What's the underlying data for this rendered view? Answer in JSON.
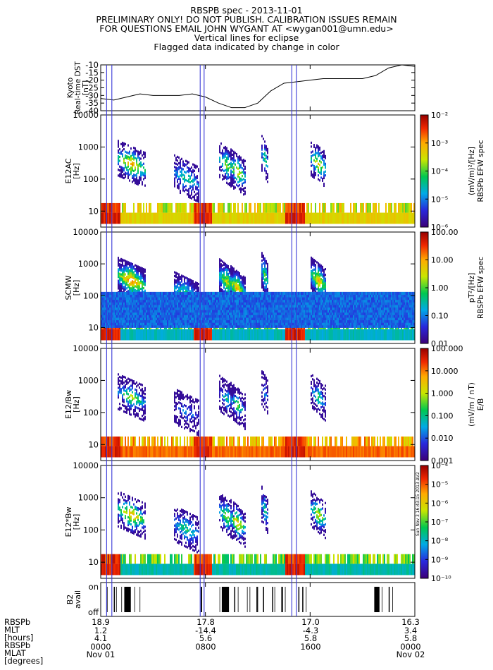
{
  "header": {
    "lines": [
      "RBSPB spec - 2013-11-01",
      "PRELIMINARY ONLY! DO NOT PUBLISH. CALIBRATION ISSUES REMAIN",
      "FOR QUESTIONS EMAIL JOHN WYGANT AT <wygan001@umn.edu>",
      "Vertical lines for eclipse",
      "Flagged data indicated by change in color"
    ]
  },
  "chart_data": [
    {
      "type": "line",
      "ylabel": [
        "Kyoto",
        "Real-time DST",
        "[nT]"
      ],
      "ylim": [
        -40,
        -10
      ],
      "yticks": [
        -10,
        -15,
        -20,
        -25,
        -30,
        -35,
        -40
      ],
      "x_hours": [
        0,
        1,
        2,
        3,
        4,
        5,
        6,
        7,
        8,
        9,
        10,
        11,
        12,
        13,
        14,
        15,
        16,
        17,
        18,
        19,
        20,
        21,
        22,
        23,
        24
      ],
      "values": [
        -32,
        -33,
        -31,
        -29,
        -30,
        -30,
        -30,
        -29,
        -31,
        -35,
        -38,
        -38,
        -35,
        -27,
        -22,
        -21,
        -20,
        -19,
        -19,
        -19,
        -19,
        -17,
        -12,
        -10,
        -11
      ],
      "grid": false
    },
    {
      "type": "heatmap",
      "ylabel": [
        "E12AC",
        "[Hz]"
      ],
      "ylog": true,
      "yticks": [
        "10",
        "100",
        "1000",
        "10000"
      ],
      "colorbar": {
        "label": [
          "(mV/m)²/[Hz]",
          "RBSPb EFW spec"
        ],
        "ticks": [
          "10⁻²",
          "10⁻³",
          "10⁻⁴",
          "10⁻⁵",
          "10⁻⁶"
        ]
      }
    },
    {
      "type": "heatmap",
      "ylabel": [
        "SCMW",
        "[Hz]"
      ],
      "ylog": true,
      "yticks": [
        "10",
        "100",
        "1000",
        "10000"
      ],
      "colorbar": {
        "label": [
          "pT²/[Hz]",
          "RBSPb EFW spec"
        ],
        "ticks": [
          "100.00",
          "10.00",
          "1.00",
          "0.10",
          "0.01"
        ]
      }
    },
    {
      "type": "heatmap",
      "ylabel": [
        "E12/Bw",
        "[Hz]"
      ],
      "ylog": true,
      "yticks": [
        "10",
        "100",
        "1000",
        "10000"
      ],
      "colorbar": {
        "label": [
          "(mV/m / nT)",
          "E/B"
        ],
        "ticks": [
          "100.000",
          "10.000",
          "1.000",
          "0.100",
          "0.010",
          "0.001"
        ]
      }
    },
    {
      "type": "heatmap",
      "ylabel": [
        "E12*Bw",
        "[Hz]"
      ],
      "ylog": true,
      "yticks": [
        "10",
        "100",
        "1000",
        "10000"
      ],
      "colorbar": {
        "label": [],
        "ticks": [
          "10⁻⁴",
          "10⁻⁵",
          "10⁻⁶",
          "10⁻⁷",
          "10⁻⁸",
          "10⁻⁹",
          "10⁻¹⁰"
        ]
      }
    },
    {
      "type": "bar",
      "ylabel": [
        "B2",
        "avail"
      ],
      "yticks": [
        "on",
        "off"
      ]
    }
  ],
  "eclipse_hours": [
    0.45,
    0.85,
    7.6,
    7.9,
    14.6,
    14.95
  ],
  "footer": {
    "row_labels": [
      "RBSPb",
      "MLT",
      "[hours]",
      "RBSPb",
      "MLAT",
      "[degrees]"
    ],
    "columns": [
      {
        "hour": 0,
        "values": [
          "18.9",
          "1.2",
          "4.1",
          "0000",
          "Nov 01"
        ]
      },
      {
        "hour": 8,
        "values": [
          "17.8",
          "-14.4",
          "5.6",
          "0800",
          ""
        ]
      },
      {
        "hour": 16,
        "values": [
          "17.0",
          "-4.3",
          "5.8",
          "1600",
          ""
        ]
      },
      {
        "hour": 24,
        "values": [
          "16.3",
          "3.4",
          "5.8",
          "0000",
          "Nov 02"
        ]
      }
    ]
  },
  "stamp": "Sun Nov 3 16:43:15 2013 ΔV2"
}
